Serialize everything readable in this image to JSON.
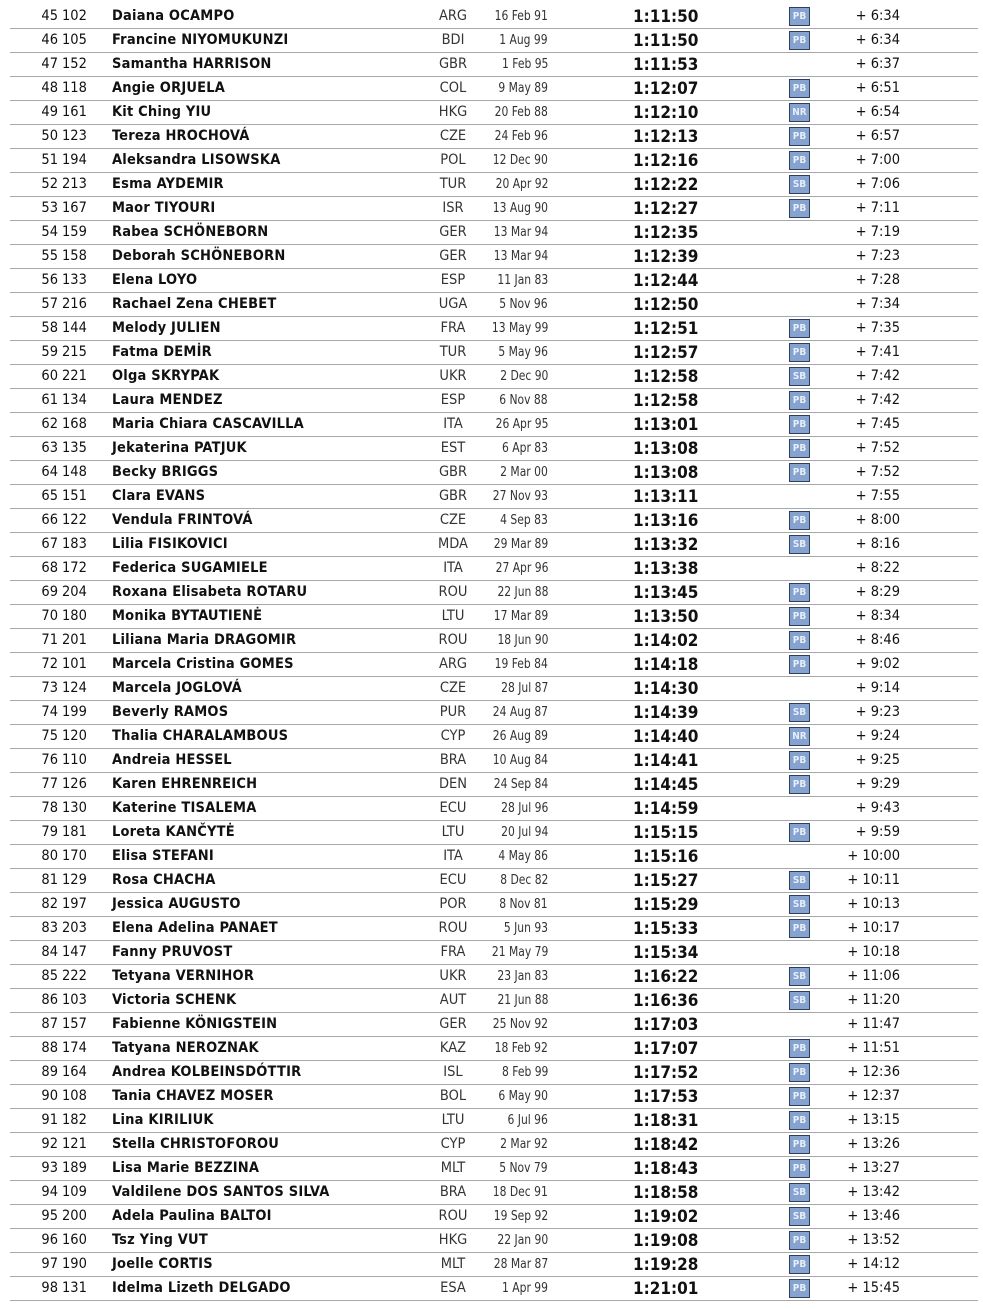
{
  "badge_color": "#86a3d0",
  "results": [
    [
      "45",
      "102",
      "Daiana OCAMPO",
      "ARG",
      "16 Feb 91",
      "1:11:50",
      "PB",
      "+ 6:34"
    ],
    [
      "46",
      "105",
      "Francine NIYOMUKUNZI",
      "BDI",
      "1 Aug 99",
      "1:11:50",
      "PB",
      "+ 6:34"
    ],
    [
      "47",
      "152",
      "Samantha HARRISON",
      "GBR",
      "1 Feb 95",
      "1:11:53",
      "",
      "+ 6:37"
    ],
    [
      "48",
      "118",
      "Angie ORJUELA",
      "COL",
      "9 May 89",
      "1:12:07",
      "PB",
      "+ 6:51"
    ],
    [
      "49",
      "161",
      "Kit Ching YIU",
      "HKG",
      "20 Feb 88",
      "1:12:10",
      "NR",
      "+ 6:54"
    ],
    [
      "50",
      "123",
      "Tereza HROCHOVÁ",
      "CZE",
      "24 Feb 96",
      "1:12:13",
      "PB",
      "+ 6:57"
    ],
    [
      "51",
      "194",
      "Aleksandra LISOWSKA",
      "POL",
      "12 Dec 90",
      "1:12:16",
      "PB",
      "+ 7:00"
    ],
    [
      "52",
      "213",
      "Esma AYDEMIR",
      "TUR",
      "20 Apr 92",
      "1:12:22",
      "SB",
      "+ 7:06"
    ],
    [
      "53",
      "167",
      "Maor TIYOURI",
      "ISR",
      "13 Aug 90",
      "1:12:27",
      "PB",
      "+ 7:11"
    ],
    [
      "54",
      "159",
      "Rabea SCHÖNEBORN",
      "GER",
      "13 Mar 94",
      "1:12:35",
      "",
      "+ 7:19"
    ],
    [
      "55",
      "158",
      "Deborah SCHÖNEBORN",
      "GER",
      "13 Mar 94",
      "1:12:39",
      "",
      "+ 7:23"
    ],
    [
      "56",
      "133",
      "Elena LOYO",
      "ESP",
      "11 Jan 83",
      "1:12:44",
      "",
      "+ 7:28"
    ],
    [
      "57",
      "216",
      "Rachael Zena CHEBET",
      "UGA",
      "5 Nov 96",
      "1:12:50",
      "",
      "+ 7:34"
    ],
    [
      "58",
      "144",
      "Melody JULIEN",
      "FRA",
      "13 May 99",
      "1:12:51",
      "PB",
      "+ 7:35"
    ],
    [
      "59",
      "215",
      "Fatma DEMİR",
      "TUR",
      "5 May 96",
      "1:12:57",
      "PB",
      "+ 7:41"
    ],
    [
      "60",
      "221",
      "Olga SKRYPAK",
      "UKR",
      "2 Dec 90",
      "1:12:58",
      "SB",
      "+ 7:42"
    ],
    [
      "61",
      "134",
      "Laura MENDEZ",
      "ESP",
      "6 Nov 88",
      "1:12:58",
      "PB",
      "+ 7:42"
    ],
    [
      "62",
      "168",
      "Maria Chiara CASCAVILLA",
      "ITA",
      "26 Apr 95",
      "1:13:01",
      "PB",
      "+ 7:45"
    ],
    [
      "63",
      "135",
      "Jekaterina PATJUK",
      "EST",
      "6 Apr 83",
      "1:13:08",
      "PB",
      "+ 7:52"
    ],
    [
      "64",
      "148",
      "Becky BRIGGS",
      "GBR",
      "2 Mar 00",
      "1:13:08",
      "PB",
      "+ 7:52"
    ],
    [
      "65",
      "151",
      "Clara EVANS",
      "GBR",
      "27 Nov 93",
      "1:13:11",
      "",
      "+ 7:55"
    ],
    [
      "66",
      "122",
      "Vendula FRINTOVÁ",
      "CZE",
      "4 Sep 83",
      "1:13:16",
      "PB",
      "+ 8:00"
    ],
    [
      "67",
      "183",
      "Lilia FISIKOVICI",
      "MDA",
      "29 Mar 89",
      "1:13:32",
      "SB",
      "+ 8:16"
    ],
    [
      "68",
      "172",
      "Federica SUGAMIELE",
      "ITA",
      "27 Apr 96",
      "1:13:38",
      "",
      "+ 8:22"
    ],
    [
      "69",
      "204",
      "Roxana Elisabeta ROTARU",
      "ROU",
      "22 Jun 88",
      "1:13:45",
      "PB",
      "+ 8:29"
    ],
    [
      "70",
      "180",
      "Monika BYTAUTIENĖ",
      "LTU",
      "17 Mar 89",
      "1:13:50",
      "PB",
      "+ 8:34"
    ],
    [
      "71",
      "201",
      "Liliana Maria DRAGOMIR",
      "ROU",
      "18 Jun 90",
      "1:14:02",
      "PB",
      "+ 8:46"
    ],
    [
      "72",
      "101",
      "Marcela Cristina GOMES",
      "ARG",
      "19 Feb 84",
      "1:14:18",
      "PB",
      "+ 9:02"
    ],
    [
      "73",
      "124",
      "Marcela JOGLOVÁ",
      "CZE",
      "28 Jul 87",
      "1:14:30",
      "",
      "+ 9:14"
    ],
    [
      "74",
      "199",
      "Beverly RAMOS",
      "PUR",
      "24 Aug 87",
      "1:14:39",
      "SB",
      "+ 9:23"
    ],
    [
      "75",
      "120",
      "Thalia CHARALAMBOUS",
      "CYP",
      "26 Aug 89",
      "1:14:40",
      "NR",
      "+ 9:24"
    ],
    [
      "76",
      "110",
      "Andreia HESSEL",
      "BRA",
      "10 Aug 84",
      "1:14:41",
      "PB",
      "+ 9:25"
    ],
    [
      "77",
      "126",
      "Karen EHRENREICH",
      "DEN",
      "24 Sep 84",
      "1:14:45",
      "PB",
      "+ 9:29"
    ],
    [
      "78",
      "130",
      "Katerine TISALEMA",
      "ECU",
      "28 Jul 96",
      "1:14:59",
      "",
      "+ 9:43"
    ],
    [
      "79",
      "181",
      "Loreta KANČYTĖ",
      "LTU",
      "20 Jul 94",
      "1:15:15",
      "PB",
      "+ 9:59"
    ],
    [
      "80",
      "170",
      "Elisa STEFANI",
      "ITA",
      "4 May 86",
      "1:15:16",
      "",
      "+ 10:00"
    ],
    [
      "81",
      "129",
      "Rosa CHACHA",
      "ECU",
      "8 Dec 82",
      "1:15:27",
      "SB",
      "+ 10:11"
    ],
    [
      "82",
      "197",
      "Jessica AUGUSTO",
      "POR",
      "8 Nov 81",
      "1:15:29",
      "SB",
      "+ 10:13"
    ],
    [
      "83",
      "203",
      "Elena Adelina PANAET",
      "ROU",
      "5 Jun 93",
      "1:15:33",
      "PB",
      "+ 10:17"
    ],
    [
      "84",
      "147",
      "Fanny PRUVOST",
      "FRA",
      "21 May 79",
      "1:15:34",
      "",
      "+ 10:18"
    ],
    [
      "85",
      "222",
      "Tetyana VERNIHOR",
      "UKR",
      "23 Jan 83",
      "1:16:22",
      "SB",
      "+ 11:06"
    ],
    [
      "86",
      "103",
      "Victoria SCHENK",
      "AUT",
      "21 Jun 88",
      "1:16:36",
      "SB",
      "+ 11:20"
    ],
    [
      "87",
      "157",
      "Fabienne KÖNIGSTEIN",
      "GER",
      "25 Nov 92",
      "1:17:03",
      "",
      "+ 11:47"
    ],
    [
      "88",
      "174",
      "Tatyana NEROZNAK",
      "KAZ",
      "18 Feb 92",
      "1:17:07",
      "PB",
      "+ 11:51"
    ],
    [
      "89",
      "164",
      "Andrea KOLBEINSDÓTTIR",
      "ISL",
      "8 Feb 99",
      "1:17:52",
      "PB",
      "+ 12:36"
    ],
    [
      "90",
      "108",
      "Tania CHAVEZ MOSER",
      "BOL",
      "6 May 90",
      "1:17:53",
      "PB",
      "+ 12:37"
    ],
    [
      "91",
      "182",
      "Lina KIRILIUK",
      "LTU",
      "6 Jul 96",
      "1:18:31",
      "PB",
      "+ 13:15"
    ],
    [
      "92",
      "121",
      "Stella CHRISTOFOROU",
      "CYP",
      "2 Mar 92",
      "1:18:42",
      "PB",
      "+ 13:26"
    ],
    [
      "93",
      "189",
      "Lisa Marie BEZZINA",
      "MLT",
      "5 Nov 79",
      "1:18:43",
      "PB",
      "+ 13:27"
    ],
    [
      "94",
      "109",
      "Valdilene DOS SANTOS SILVA",
      "BRA",
      "18 Dec 91",
      "1:18:58",
      "SB",
      "+ 13:42"
    ],
    [
      "95",
      "200",
      "Adela Paulina BALTOI",
      "ROU",
      "19 Sep 92",
      "1:19:02",
      "SB",
      "+ 13:46"
    ],
    [
      "96",
      "160",
      "Tsz Ying VUT",
      "HKG",
      "22 Jan 90",
      "1:19:08",
      "PB",
      "+ 13:52"
    ],
    [
      "97",
      "190",
      "Joelle CORTIS",
      "MLT",
      "28 Mar 87",
      "1:19:28",
      "PB",
      "+ 14:12"
    ],
    [
      "98",
      "131",
      "Idelma Lizeth DELGADO",
      "ESA",
      "1 Apr 99",
      "1:21:01",
      "PB",
      "+ 15:45"
    ]
  ]
}
